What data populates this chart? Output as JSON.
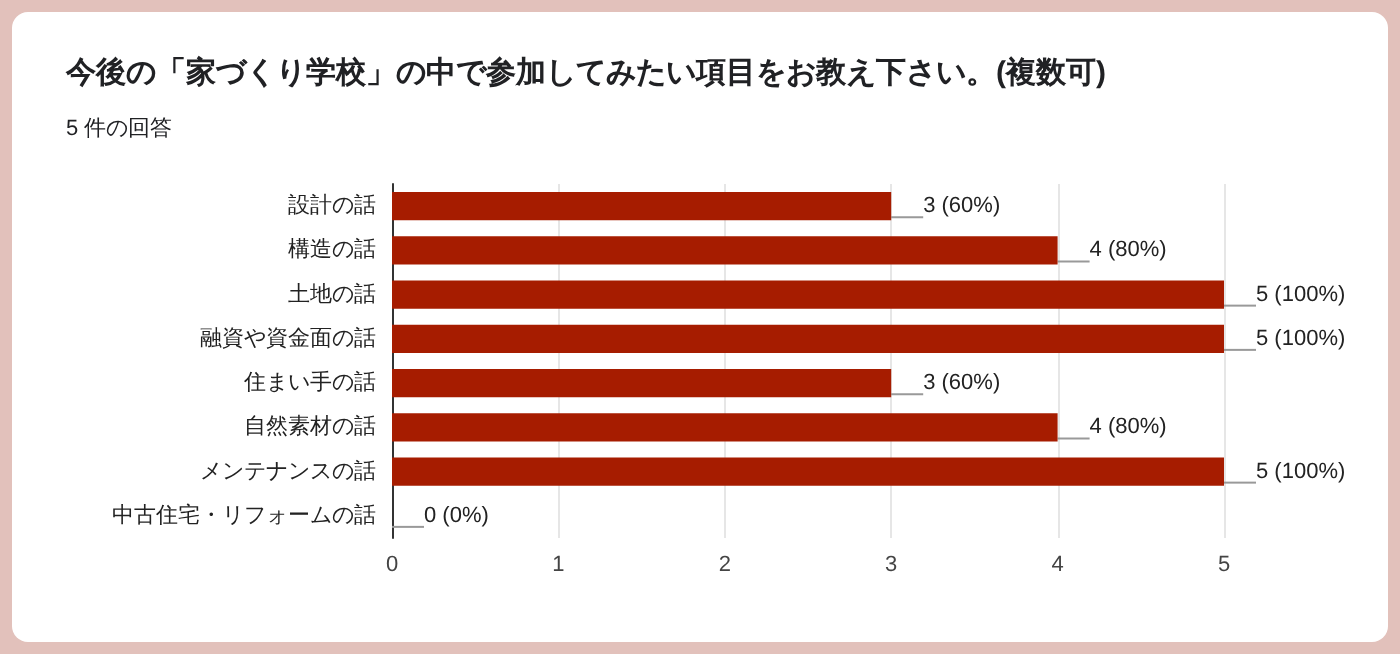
{
  "chart_data": {
    "type": "bar",
    "orientation": "horizontal",
    "title": "今後の「家づくり学校」の中で参加してみたい項目をお教え下さい。(複数可)",
    "subtitle": "5 件の回答",
    "categories": [
      "設計の話",
      "構造の話",
      "土地の話",
      "融資や資金面の話",
      "住まい手の話",
      "自然素材の話",
      "メンテナンスの話",
      "中古住宅・リフォームの話"
    ],
    "values": [
      3,
      4,
      5,
      5,
      3,
      4,
      5,
      0
    ],
    "value_labels": [
      "3 (60%)",
      "4 (80%)",
      "5 (100%)",
      "5 (100%)",
      "3 (60%)",
      "4 (80%)",
      "5 (100%)",
      "0 (0%)"
    ],
    "color": "#a61c00",
    "xlim": [
      0,
      5
    ],
    "xticks": [
      0,
      1,
      2,
      3,
      4,
      5
    ],
    "grid": "x"
  }
}
